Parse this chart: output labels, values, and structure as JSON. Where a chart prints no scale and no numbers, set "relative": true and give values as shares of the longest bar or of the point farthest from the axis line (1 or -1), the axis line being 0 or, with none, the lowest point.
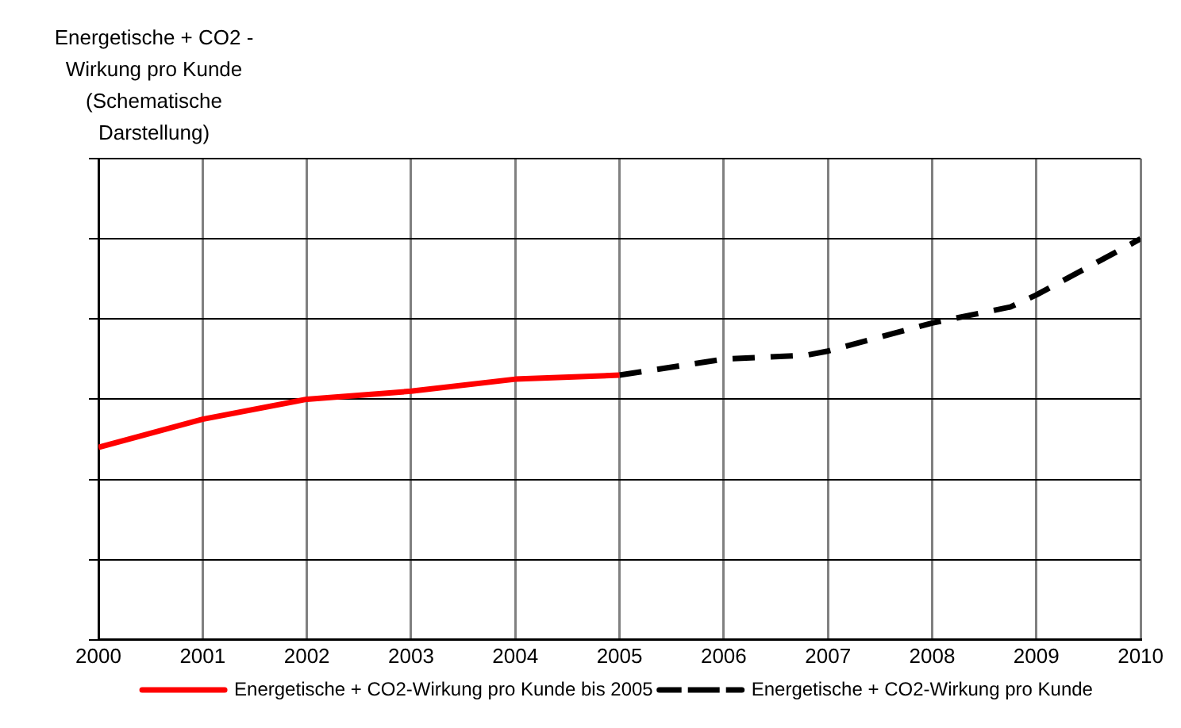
{
  "chart_data": {
    "type": "line",
    "ylabel": "Energetische + CO2 - Wirkung pro Kunde (Schematische Darstellung)",
    "relative": true,
    "xlim": [
      2000,
      2010
    ],
    "xticks": [
      2000,
      2001,
      2002,
      2003,
      2004,
      2005,
      2006,
      2007,
      2008,
      2009,
      2010
    ],
    "grid": true,
    "legend": "bottom",
    "marker": "none",
    "series": [
      {
        "name": "Energetische + CO2-Wirkung pro Kunde bis 2005",
        "color": "#ff0000",
        "x": [
          2000,
          2001,
          2002,
          2003,
          2004,
          2005
        ],
        "values": [
          0.48,
          0.55,
          0.6,
          0.62,
          0.65,
          0.66
        ],
        "line_style": "solid"
      },
      {
        "name": "Energetische + CO2-Wirkung pro Kunde",
        "color": "#000000",
        "x": [
          2005,
          2006,
          2006.8,
          2007,
          2008,
          2008.75,
          2009,
          2010
        ],
        "values": [
          0.66,
          0.7,
          0.71,
          0.72,
          0.79,
          0.83,
          0.86,
          1
        ],
        "line_style": "dashed"
      }
    ]
  }
}
